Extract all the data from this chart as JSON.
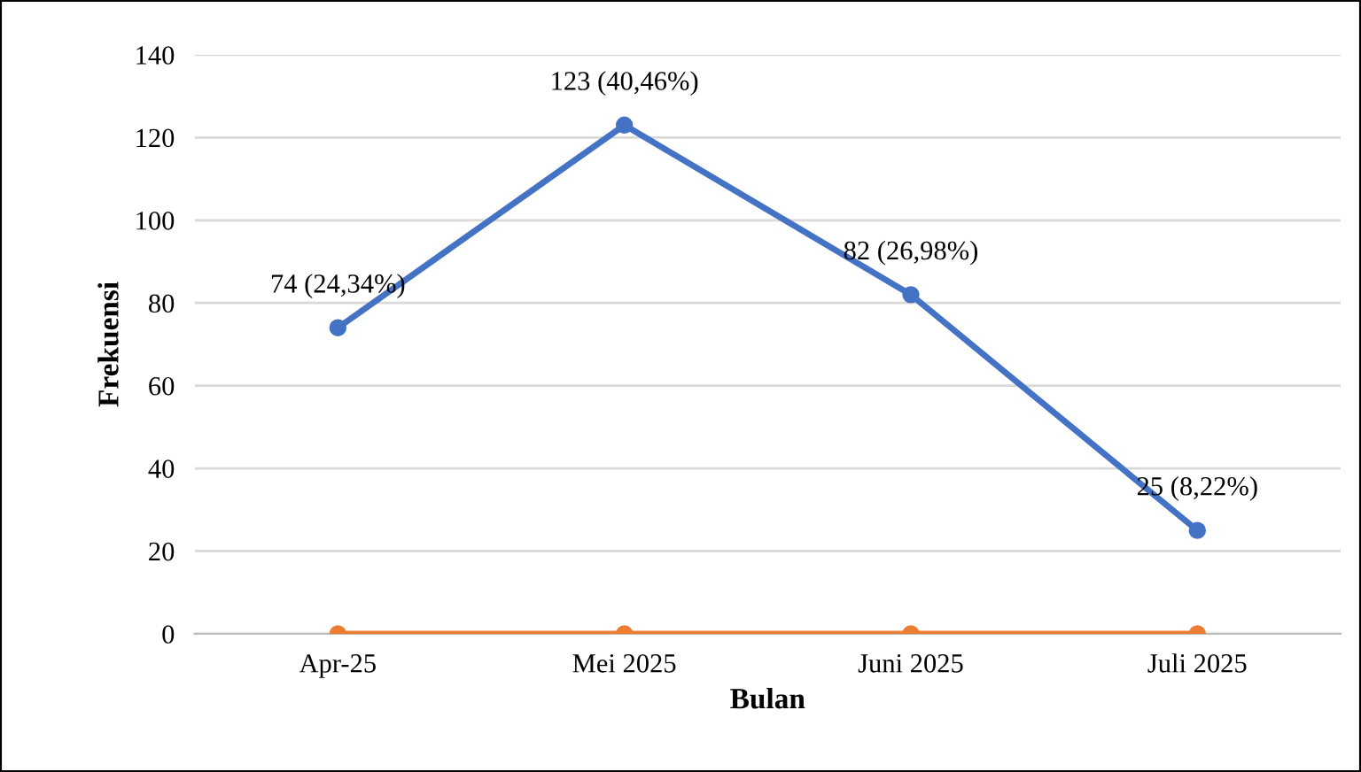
{
  "chart_data": {
    "type": "line",
    "xlabel": "Bulan",
    "ylabel": "Frekuensi",
    "categories": [
      "Apr-25",
      "Mei 2025",
      "Juni 2025",
      "Juli 2025"
    ],
    "series": [
      {
        "color": "#4472c4",
        "values": [
          74,
          123,
          82,
          25
        ],
        "value_labels": [
          "74 (24,34%)",
          "123 (40,46%)",
          "82 (26,98%)",
          "25 (8,22%)"
        ]
      },
      {
        "color": "#ed7d31",
        "values": [
          0,
          0,
          0,
          0
        ]
      }
    ],
    "ylim": [
      0,
      140
    ],
    "yticks": [
      0,
      20,
      40,
      60,
      80,
      100,
      120,
      140
    ],
    "grid": "y",
    "marker": "circle",
    "line_style": "solid",
    "legend": false
  }
}
